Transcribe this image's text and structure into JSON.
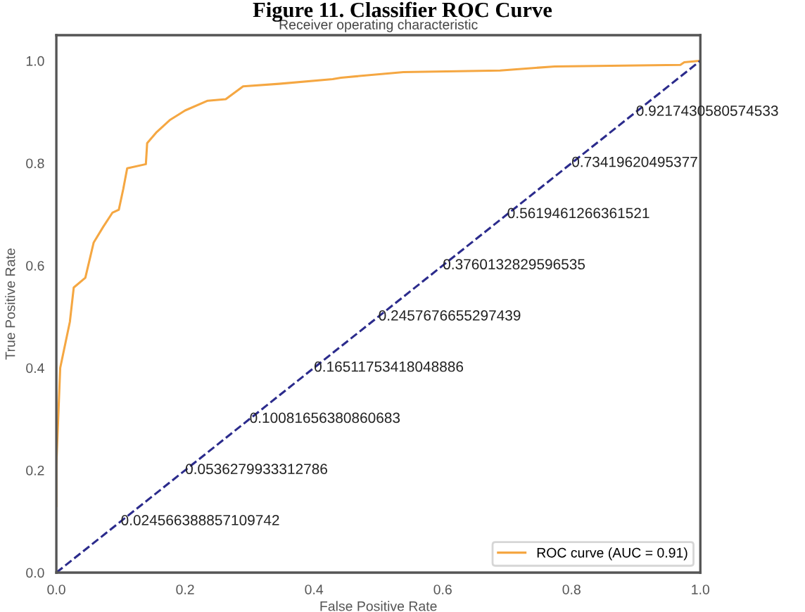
{
  "chart_data": {
    "type": "line",
    "title": "Figure 11. Classifier ROC Curve",
    "subtitle": "Receiver operating characteristic",
    "xlabel": "False Positive Rate",
    "ylabel": "True Positive Rate",
    "xlim": [
      0,
      1
    ],
    "ylim": [
      0,
      1.05
    ],
    "xticks": [
      {
        "value": 0,
        "label": "0.0"
      },
      {
        "value": 0.2,
        "label": "0.2"
      },
      {
        "value": 0.4,
        "label": "0.4"
      },
      {
        "value": 0.6,
        "label": "0.6"
      },
      {
        "value": 0.8,
        "label": "0.8"
      },
      {
        "value": 1,
        "label": "1.0"
      }
    ],
    "yticks": [
      {
        "value": 0,
        "label": "0.0"
      },
      {
        "value": 0.2,
        "label": "0.2"
      },
      {
        "value": 0.4,
        "label": "0.4"
      },
      {
        "value": 0.6,
        "label": "0.6"
      },
      {
        "value": 0.8,
        "label": "0.8"
      },
      {
        "value": 1,
        "label": "1.0"
      }
    ],
    "grid": false,
    "legend": "bottom right",
    "series": [
      {
        "name": "ROC curve (AUC = 0.91)",
        "color": "#f5a742",
        "line_style": "solid",
        "x": [
          0,
          0,
          0.006,
          0.021,
          0.027,
          0.045,
          0.058,
          0.073,
          0.087,
          0.097,
          0.104,
          0.11,
          0.139,
          0.141,
          0.156,
          0.176,
          0.2,
          0.235,
          0.263,
          0.29,
          0.346,
          0.429,
          0.442,
          0.539,
          0.689,
          0.774,
          0.969,
          0.975,
          1
        ],
        "values": [
          0.13,
          0.21,
          0.4,
          0.49,
          0.557,
          0.576,
          0.645,
          0.676,
          0.703,
          0.709,
          0.75,
          0.79,
          0.798,
          0.839,
          0.861,
          0.884,
          0.903,
          0.922,
          0.925,
          0.95,
          0.955,
          0.964,
          0.967,
          0.978,
          0.981,
          0.989,
          0.992,
          0.997,
          1
        ]
      },
      {
        "color": "#2b2b8c",
        "line_style": "dashed",
        "x": [
          0,
          1
        ],
        "values": [
          0,
          1
        ]
      }
    ],
    "annotations": [
      {
        "text": "0.024566388857109742",
        "x": 0.1,
        "y": 0.1
      },
      {
        "text": "0.0536279933312786",
        "x": 0.2,
        "y": 0.2
      },
      {
        "text": "0.10081656380860683",
        "x": 0.3,
        "y": 0.3
      },
      {
        "text": "0.16511753418048886",
        "x": 0.4,
        "y": 0.4
      },
      {
        "text": "0.2457676655297439",
        "x": 0.5,
        "y": 0.5
      },
      {
        "text": "0.3760132829596535",
        "x": 0.6,
        "y": 0.6
      },
      {
        "text": "0.5619461266361521",
        "x": 0.7,
        "y": 0.7
      },
      {
        "text": "0.73419620495377",
        "x": 0.8,
        "y": 0.8
      },
      {
        "text": "0.9217430580574533",
        "x": 0.9,
        "y": 0.9
      }
    ]
  }
}
